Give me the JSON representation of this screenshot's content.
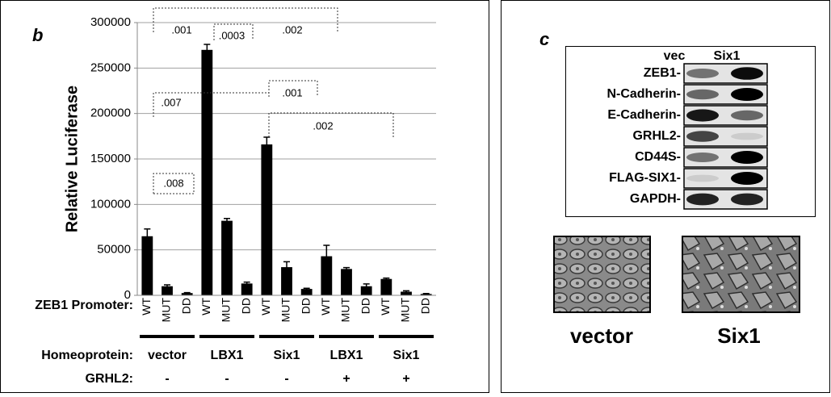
{
  "chart_data": {
    "type": "bar",
    "panel_label": "b",
    "y_label": "Relative Luciferase",
    "categories": [
      "WT",
      "MUT",
      "DD",
      "WT",
      "MUT",
      "DD",
      "WT",
      "MUT",
      "DD",
      "WT",
      "MUT",
      "DD",
      "WT",
      "MUT",
      "DD"
    ],
    "values": [
      65000,
      10000,
      2500,
      270000,
      82000,
      13000,
      166000,
      31000,
      7000,
      43000,
      29000,
      10000,
      18000,
      4000,
      1500
    ],
    "errors": [
      8000,
      1500,
      500,
      6000,
      2500,
      1500,
      8000,
      6000,
      800,
      12000,
      1500,
      2500,
      1000,
      1000,
      500
    ],
    "color": "#000000",
    "ylim": [
      0,
      300000
    ],
    "yticks": [
      0,
      50000,
      100000,
      150000,
      200000,
      250000,
      300000
    ],
    "grid": true,
    "annotations": [
      ".001",
      ".0003",
      ".002",
      ".007",
      ".001",
      ".002",
      ".008"
    ],
    "x_row_label": "ZEB1 Promoter:",
    "homeoprotein": {
      "label": "Homeoprotein:",
      "values": [
        "vector",
        "LBX1",
        "Six1",
        "LBX1",
        "Six1"
      ]
    },
    "grhl2": {
      "label": "GRHL2:",
      "values": [
        "-",
        "-",
        "-",
        "+",
        "+"
      ]
    }
  },
  "blot": {
    "panel_label": "c",
    "columns": [
      "vec",
      "Six1"
    ],
    "rows": [
      "ZEB1-",
      "N-Cadherin-",
      "E-Cadherin-",
      "GRHL2-",
      "CD44S-",
      "FLAG-SIX1-",
      "GAPDH-"
    ],
    "image_captions": [
      "vector",
      "Six1"
    ]
  }
}
